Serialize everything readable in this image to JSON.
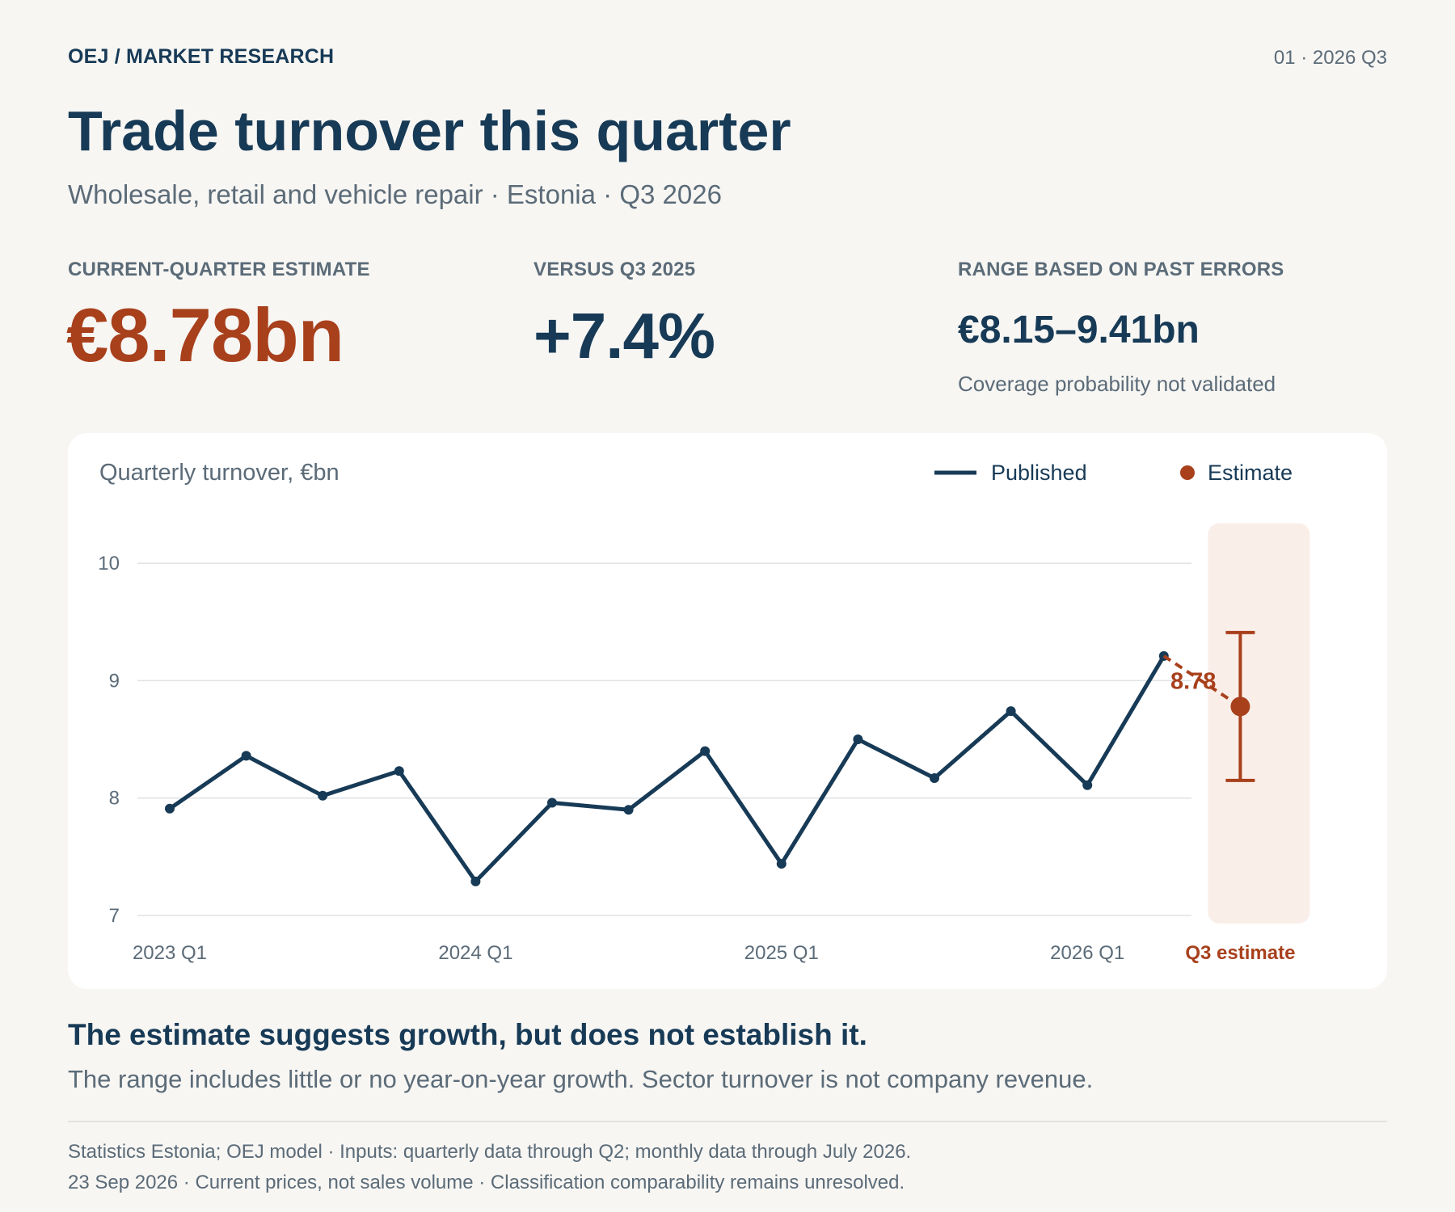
{
  "header": {
    "kicker": "OEJ / MARKET RESEARCH",
    "page_label": "01 · 2026 Q3",
    "title": "Trade turnover this quarter",
    "subtitle": "Wholesale, retail and vehicle repair · Estonia · Q3 2026"
  },
  "kpis": {
    "estimate_label": "CURRENT-QUARTER ESTIMATE",
    "estimate_value": "€8.78bn",
    "change_label": "VERSUS Q3 2025",
    "change_value": "+7.4%",
    "range_label": "RANGE BASED ON PAST ERRORS",
    "range_value": "€8.15–9.41bn",
    "range_note": "Coverage probability not validated"
  },
  "chart_data": {
    "type": "line",
    "title": "Quarterly turnover, €bn",
    "ylim": [
      7,
      10.3
    ],
    "yticks": [
      7,
      8,
      9,
      10
    ],
    "grid": true,
    "legend_placement": "top-right",
    "legend": {
      "published": "Published",
      "estimate": "Estimate"
    },
    "x_labels": [
      {
        "index": 0,
        "label": "2023 Q1"
      },
      {
        "index": 4,
        "label": "2024 Q1"
      },
      {
        "index": 8,
        "label": "2025 Q1"
      },
      {
        "index": 12,
        "label": "2026 Q1"
      }
    ],
    "series": [
      {
        "name": "Published",
        "x": [
          "2023 Q1",
          "2023 Q2",
          "2023 Q3",
          "2023 Q4",
          "2024 Q1",
          "2024 Q2",
          "2024 Q3",
          "2024 Q4",
          "2025 Q1",
          "2025 Q2",
          "2025 Q3",
          "2025 Q4",
          "2026 Q1",
          "2026 Q2"
        ],
        "values": [
          7.91,
          8.36,
          8.02,
          8.23,
          7.29,
          7.96,
          7.9,
          8.4,
          7.44,
          8.5,
          8.17,
          8.74,
          8.11,
          9.21
        ]
      }
    ],
    "estimate": {
      "name": "Estimate",
      "x": "2026 Q3",
      "x_label": "Q3 estimate",
      "value": 8.78,
      "value_label": "8.78",
      "low": 8.15,
      "high": 9.41
    },
    "colors": {
      "published": "#173a56",
      "estimate": "#a8401c",
      "estimate_band": "#faeee8",
      "grid": "#dfe2e4",
      "axis_text": "#5b6b78"
    }
  },
  "takeaway": {
    "headline": "The estimate suggests growth, but does not establish it.",
    "detail": "The range includes little or no year-on-year growth. Sector turnover is not company revenue."
  },
  "footer": {
    "line1": "Statistics Estonia; OEJ model · Inputs: quarterly data through Q2; monthly data through July 2026.",
    "line2": "23 Sep 2026 · Current prices, not sales volume · Classification comparability remains unresolved."
  }
}
